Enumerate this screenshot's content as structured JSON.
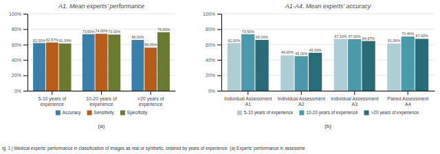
{
  "chart_data": [
    {
      "type": "bar",
      "title": "A1. Mean experts’ performance",
      "categories": [
        "5-10 years of\nexperience",
        "10-20 years of\nexperience",
        ">20 years of\nexperience"
      ],
      "series": [
        {
          "name": "Accuracy",
          "color": "#3a7fa8",
          "values": [
            62.0,
            73.5,
            66.0
          ],
          "value_labels": [
            "62,00%",
            "73,50%",
            "66,00%"
          ]
        },
        {
          "name": "Sensitivity",
          "color": "#b85c1a",
          "values": [
            62.67,
            74.0,
            56.0
          ],
          "value_labels": [
            "62,67%",
            "74,00%",
            "56,00%"
          ]
        },
        {
          "name": "Specificity",
          "color": "#6a7a2e",
          "values": [
            61.33,
            73.0,
            76.0
          ],
          "value_labels": [
            "61,33%",
            "73,00%",
            "76,00%"
          ]
        }
      ],
      "ylim": [
        0,
        100
      ],
      "yticks": [
        {
          "value": 0,
          "label": "0%"
        },
        {
          "value": 20,
          "label": "20%"
        },
        {
          "value": 40,
          "label": "40%"
        },
        {
          "value": 60,
          "label": "60%"
        },
        {
          "value": 80,
          "label": "80%"
        },
        {
          "value": 100,
          "label": "100%"
        }
      ],
      "grid": true,
      "legend": "bottom",
      "data_labels": true,
      "xlabel": "(a)"
    },
    {
      "type": "bar",
      "title": "A1-A4. Mean experts’ accuracy",
      "categories": [
        "Individual Assessment\nA1",
        "Individual Assessment\nA2",
        "Individual Assessment\nA3",
        "Paired Assessment\nA4"
      ],
      "series": [
        {
          "name": "5-10 years of experience",
          "color": "#aecdd4",
          "values": [
            62.0,
            46.0,
            67.33,
            61.36
          ],
          "value_labels": [
            "62,00%",
            "46,00%",
            "67,33%",
            "61,36%"
          ]
        },
        {
          "name": "10-20 years of experience",
          "color": "#4a9aac",
          "values": [
            73.5,
            45.0,
            67.0,
            70.46
          ],
          "value_labels": [
            "73,50%",
            "45,00%",
            "67,00%",
            "70,46%"
          ]
        },
        {
          "name": ">20 years of experience",
          "color": "#2a6b7a",
          "values": [
            66.0,
            49.33,
            64.67,
            67.42
          ],
          "value_labels": [
            "66,00%",
            "49,33%",
            "64,67%",
            "67,42%"
          ]
        }
      ],
      "ylim": [
        0,
        100
      ],
      "yticks": [
        {
          "value": 0,
          "label": "0%"
        },
        {
          "value": 20,
          "label": "20%"
        },
        {
          "value": 40,
          "label": "40%"
        },
        {
          "value": 60,
          "label": "60%"
        },
        {
          "value": 80,
          "label": "80%"
        },
        {
          "value": 100,
          "label": "100%"
        }
      ],
      "grid": true,
      "legend": "bottom",
      "data_labels": true,
      "xlabel": "(b)"
    }
  ],
  "caption": "ig. 1 | Medical experts’ performance in classification of images as real or synthetic, ordered by years of experience. (a) Experts’ performance in assessme"
}
